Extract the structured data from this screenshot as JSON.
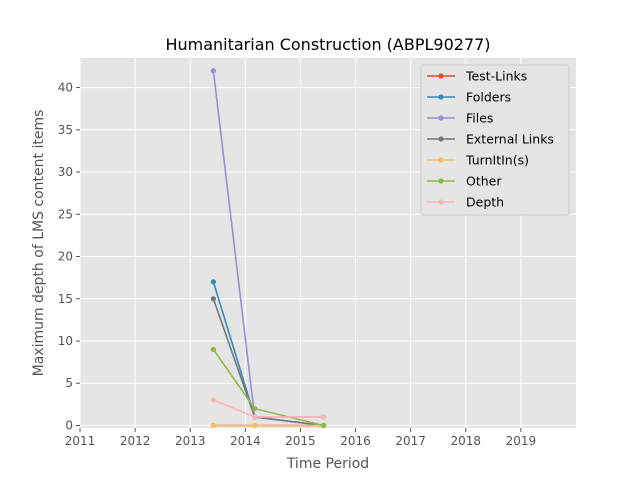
{
  "chart_data": {
    "type": "line",
    "title": "Humanitarian Construction (ABPL90277)",
    "xlabel": "Time Period",
    "ylabel": "Maximum depth of LMS content items",
    "xlim": [
      2011,
      2020
    ],
    "ylim": [
      -0.3,
      43.5
    ],
    "x_ticks": [
      2011,
      2012,
      2013,
      2014,
      2015,
      2016,
      2017,
      2018,
      2019
    ],
    "y_ticks": [
      0,
      5,
      10,
      15,
      20,
      25,
      30,
      35,
      40
    ],
    "grid": true,
    "legend_position": "top-right",
    "x": [
      2013.42,
      2014.17,
      2015.42
    ],
    "series": [
      {
        "name": "Test-Links",
        "color": "#E24A33",
        "values": [
          0,
          0,
          0
        ]
      },
      {
        "name": "Folders",
        "color": "#348ABD",
        "values": [
          17,
          1,
          0
        ]
      },
      {
        "name": "Files",
        "color": "#988ED5",
        "values": [
          42,
          1,
          1
        ]
      },
      {
        "name": "External Links",
        "color": "#777777",
        "values": [
          15,
          1,
          0
        ]
      },
      {
        "name": "TurnItIn(s)",
        "color": "#FBC15E",
        "values": [
          0,
          0,
          0
        ]
      },
      {
        "name": "Other",
        "color": "#8EBA42",
        "values": [
          9,
          2,
          0
        ]
      },
      {
        "name": "Depth",
        "color": "#FFB5B8",
        "values": [
          3,
          1,
          1
        ]
      }
    ]
  }
}
